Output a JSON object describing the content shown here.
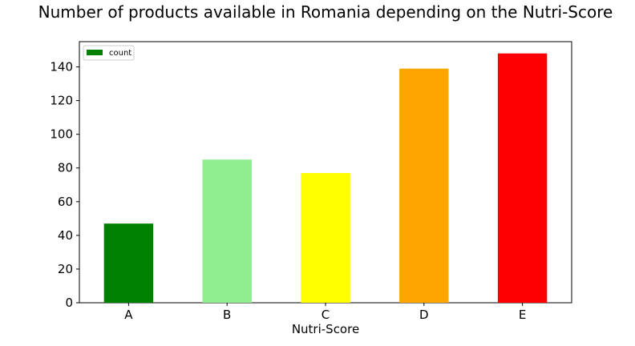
{
  "chart_data": {
    "type": "bar",
    "title": "Number of products available in Romania depending on the Nutri-Score",
    "xlabel": "Nutri-Score",
    "ylabel": "",
    "categories": [
      "A",
      "B",
      "C",
      "D",
      "E"
    ],
    "series": [
      {
        "name": "count",
        "values": [
          47,
          85,
          77,
          139,
          148
        ]
      }
    ],
    "bar_colors": [
      "#008000",
      "#90ee90",
      "#ffff00",
      "#ffa500",
      "#ff0000"
    ],
    "legend_color": "#008000",
    "ylim": [
      0,
      155
    ],
    "yticks": [
      0,
      20,
      40,
      60,
      80,
      100,
      120,
      140
    ],
    "grid": false,
    "legend_position": "top-left"
  }
}
